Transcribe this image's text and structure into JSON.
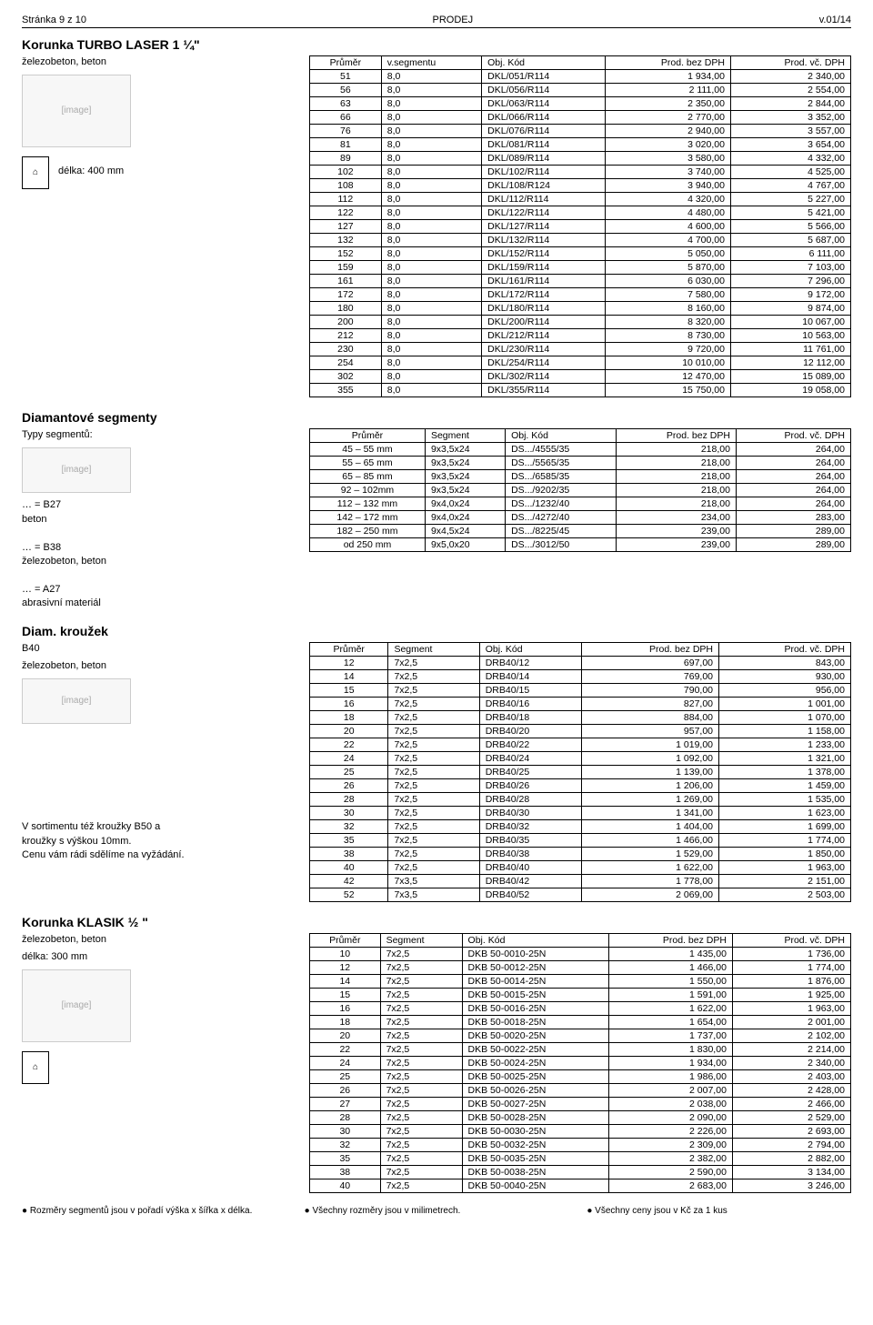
{
  "header": {
    "left": "Stránka 9 z 10",
    "center": "PRODEJ",
    "right": "v.01/14"
  },
  "turbo": {
    "title": "Korunka TURBO LASER 1 ¼\"",
    "subtitle": "železobeton, beton",
    "length_label": "délka: 400 mm",
    "columns": [
      "Průměr",
      "v.segmentu",
      "Obj. Kód",
      "Prod. bez DPH",
      "Prod. vč. DPH"
    ],
    "rows": [
      [
        "51",
        "8,0",
        "DKL/051/R114",
        "1 934,00",
        "2 340,00"
      ],
      [
        "56",
        "8,0",
        "DKL/056/R114",
        "2 111,00",
        "2 554,00"
      ],
      [
        "63",
        "8,0",
        "DKL/063/R114",
        "2 350,00",
        "2 844,00"
      ],
      [
        "66",
        "8,0",
        "DKL/066/R114",
        "2 770,00",
        "3 352,00"
      ],
      [
        "76",
        "8,0",
        "DKL/076/R114",
        "2 940,00",
        "3 557,00"
      ],
      [
        "81",
        "8,0",
        "DKL/081/R114",
        "3 020,00",
        "3 654,00"
      ],
      [
        "89",
        "8,0",
        "DKL/089/R114",
        "3 580,00",
        "4 332,00"
      ],
      [
        "102",
        "8,0",
        "DKL/102/R114",
        "3 740,00",
        "4 525,00"
      ],
      [
        "108",
        "8,0",
        "DKL/108/R124",
        "3 940,00",
        "4 767,00"
      ],
      [
        "112",
        "8,0",
        "DKL/112/R114",
        "4 320,00",
        "5 227,00"
      ],
      [
        "122",
        "8,0",
        "DKL/122/R114",
        "4 480,00",
        "5 421,00"
      ],
      [
        "127",
        "8,0",
        "DKL/127/R114",
        "4 600,00",
        "5 566,00"
      ],
      [
        "132",
        "8,0",
        "DKL/132/R114",
        "4 700,00",
        "5 687,00"
      ],
      [
        "152",
        "8,0",
        "DKL/152/R114",
        "5 050,00",
        "6 111,00"
      ],
      [
        "159",
        "8,0",
        "DKL/159/R114",
        "5 870,00",
        "7 103,00"
      ],
      [
        "161",
        "8,0",
        "DKL/161/R114",
        "6 030,00",
        "7 296,00"
      ],
      [
        "172",
        "8,0",
        "DKL/172/R114",
        "7 580,00",
        "9 172,00"
      ],
      [
        "180",
        "8,0",
        "DKL/180/R114",
        "8 160,00",
        "9 874,00"
      ],
      [
        "200",
        "8,0",
        "DKL/200/R114",
        "8 320,00",
        "10 067,00"
      ],
      [
        "212",
        "8,0",
        "DKL/212/R114",
        "8 730,00",
        "10 563,00"
      ],
      [
        "230",
        "8,0",
        "DKL/230/R114",
        "9 720,00",
        "11 761,00"
      ],
      [
        "254",
        "8,0",
        "DKL/254/R114",
        "10 010,00",
        "12 112,00"
      ],
      [
        "302",
        "8,0",
        "DKL/302/R114",
        "12 470,00",
        "15 089,00"
      ],
      [
        "355",
        "8,0",
        "DKL/355/R114",
        "15 750,00",
        "19 058,00"
      ]
    ]
  },
  "segments": {
    "title": "Diamantové segmenty",
    "types_label": "Typy segmentů:",
    "type_lines": [
      "… = B27",
      "beton",
      "",
      "… = B38",
      "železobeton, beton",
      "",
      "… = A27",
      "abrasivní materiál"
    ],
    "columns": [
      "Průměr",
      "Segment",
      "Obj. Kód",
      "Prod. bez DPH",
      "Prod. vč. DPH"
    ],
    "rows": [
      [
        "45 – 55 mm",
        "9x3,5x24",
        "DS.../4555/35",
        "218,00",
        "264,00"
      ],
      [
        "55 – 65 mm",
        "9x3,5x24",
        "DS.../5565/35",
        "218,00",
        "264,00"
      ],
      [
        "65 – 85 mm",
        "9x3,5x24",
        "DS.../6585/35",
        "218,00",
        "264,00"
      ],
      [
        "92 – 102mm",
        "9x3,5x24",
        "DS.../9202/35",
        "218,00",
        "264,00"
      ],
      [
        "112 – 132 mm",
        "9x4,0x24",
        "DS.../1232/40",
        "218,00",
        "264,00"
      ],
      [
        "142 – 172 mm",
        "9x4,0x24",
        "DS.../4272/40",
        "234,00",
        "283,00"
      ],
      [
        "182 – 250 mm",
        "9x4,5x24",
        "DS.../8225/45",
        "239,00",
        "289,00"
      ],
      [
        "od 250 mm",
        "9x5,0x20",
        "DS.../3012/50",
        "239,00",
        "289,00"
      ]
    ]
  },
  "ring": {
    "title": "Diam. kroužek",
    "type_line1": "B40",
    "type_line2": "železobeton, beton",
    "note1": "V sortimentu též kroužky B50 a",
    "note2": "kroužky s výškou 10mm.",
    "note3": "Cenu vám rádi sdělíme na vyžádání.",
    "columns": [
      "Průměr",
      "Segment",
      "Obj. Kód",
      "Prod. bez DPH",
      "Prod. vč. DPH"
    ],
    "rows": [
      [
        "12",
        "7x2,5",
        "DRB40/12",
        "697,00",
        "843,00"
      ],
      [
        "14",
        "7x2,5",
        "DRB40/14",
        "769,00",
        "930,00"
      ],
      [
        "15",
        "7x2,5",
        "DRB40/15",
        "790,00",
        "956,00"
      ],
      [
        "16",
        "7x2,5",
        "DRB40/16",
        "827,00",
        "1 001,00"
      ],
      [
        "18",
        "7x2,5",
        "DRB40/18",
        "884,00",
        "1 070,00"
      ],
      [
        "20",
        "7x2,5",
        "DRB40/20",
        "957,00",
        "1 158,00"
      ],
      [
        "22",
        "7x2,5",
        "DRB40/22",
        "1 019,00",
        "1 233,00"
      ],
      [
        "24",
        "7x2,5",
        "DRB40/24",
        "1 092,00",
        "1 321,00"
      ],
      [
        "25",
        "7x2,5",
        "DRB40/25",
        "1 139,00",
        "1 378,00"
      ],
      [
        "26",
        "7x2,5",
        "DRB40/26",
        "1 206,00",
        "1 459,00"
      ],
      [
        "28",
        "7x2,5",
        "DRB40/28",
        "1 269,00",
        "1 535,00"
      ],
      [
        "30",
        "7x2,5",
        "DRB40/30",
        "1 341,00",
        "1 623,00"
      ],
      [
        "32",
        "7x2,5",
        "DRB40/32",
        "1 404,00",
        "1 699,00"
      ],
      [
        "35",
        "7x2,5",
        "DRB40/35",
        "1 466,00",
        "1 774,00"
      ],
      [
        "38",
        "7x2,5",
        "DRB40/38",
        "1 529,00",
        "1 850,00"
      ],
      [
        "40",
        "7x2,5",
        "DRB40/40",
        "1 622,00",
        "1 963,00"
      ],
      [
        "42",
        "7x3,5",
        "DRB40/42",
        "1 778,00",
        "2 151,00"
      ],
      [
        "52",
        "7x3,5",
        "DRB40/52",
        "2 069,00",
        "2 503,00"
      ]
    ]
  },
  "klasik": {
    "title": "Korunka  KLASIK ½ \"",
    "subtitle": "železobeton, beton",
    "length_label": "délka: 300 mm",
    "columns": [
      "Průměr",
      "Segment",
      "Obj. Kód",
      "Prod. bez DPH",
      "Prod. vč. DPH"
    ],
    "rows": [
      [
        "10",
        "7x2,5",
        "DKB 50-0010-25N",
        "1 435,00",
        "1 736,00"
      ],
      [
        "12",
        "7x2,5",
        "DKB 50-0012-25N",
        "1 466,00",
        "1 774,00"
      ],
      [
        "14",
        "7x2,5",
        "DKB 50-0014-25N",
        "1 550,00",
        "1 876,00"
      ],
      [
        "15",
        "7x2,5",
        "DKB 50-0015-25N",
        "1 591,00",
        "1 925,00"
      ],
      [
        "16",
        "7x2,5",
        "DKB 50-0016-25N",
        "1 622,00",
        "1 963,00"
      ],
      [
        "18",
        "7x2,5",
        "DKB 50-0018-25N",
        "1 654,00",
        "2 001,00"
      ],
      [
        "20",
        "7x2,5",
        "DKB 50-0020-25N",
        "1 737,00",
        "2 102,00"
      ],
      [
        "22",
        "7x2,5",
        "DKB 50-0022-25N",
        "1 830,00",
        "2 214,00"
      ],
      [
        "24",
        "7x2,5",
        "DKB 50-0024-25N",
        "1 934,00",
        "2 340,00"
      ],
      [
        "25",
        "7x2,5",
        "DKB 50-0025-25N",
        "1 986,00",
        "2 403,00"
      ],
      [
        "26",
        "7x2,5",
        "DKB 50-0026-25N",
        "2 007,00",
        "2 428,00"
      ],
      [
        "27",
        "7x2,5",
        "DKB 50-0027-25N",
        "2 038,00",
        "2 466,00"
      ],
      [
        "28",
        "7x2,5",
        "DKB 50-0028-25N",
        "2 090,00",
        "2 529,00"
      ],
      [
        "30",
        "7x2,5",
        "DKB 50-0030-25N",
        "2 226,00",
        "2 693,00"
      ],
      [
        "32",
        "7x2,5",
        "DKB 50-0032-25N",
        "2 309,00",
        "2 794,00"
      ],
      [
        "35",
        "7x2,5",
        "DKB 50-0035-25N",
        "2 382,00",
        "2 882,00"
      ],
      [
        "38",
        "7x2,5",
        "DKB 50-0038-25N",
        "2 590,00",
        "3 134,00"
      ],
      [
        "40",
        "7x2,5",
        "DKB 50-0040-25N",
        "2 683,00",
        "3 246,00"
      ]
    ]
  },
  "footer": {
    "left": "● Rozměry segmentů jsou v pořadí výška x šířka x délka.",
    "center": "● Všechny rozměry jsou v milimetrech.",
    "right": "● Všechny ceny jsou v Kč za 1 kus"
  },
  "img_placeholder": "[image]",
  "icon_placeholder": "⌂"
}
